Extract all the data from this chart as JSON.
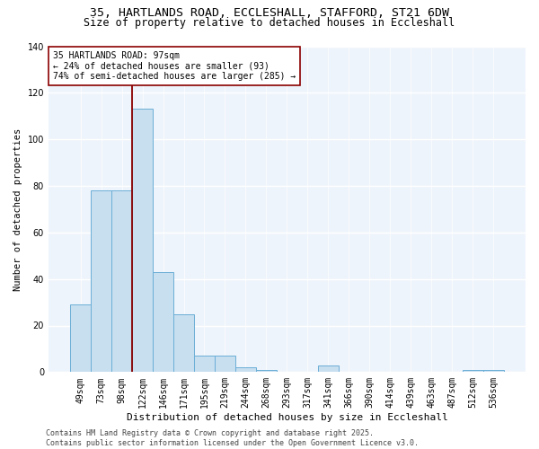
{
  "title_line1": "35, HARTLANDS ROAD, ECCLESHALL, STAFFORD, ST21 6DW",
  "title_line2": "Size of property relative to detached houses in Eccleshall",
  "xlabel": "Distribution of detached houses by size in Eccleshall",
  "ylabel": "Number of detached properties",
  "categories": [
    "49sqm",
    "73sqm",
    "98sqm",
    "122sqm",
    "146sqm",
    "171sqm",
    "195sqm",
    "219sqm",
    "244sqm",
    "268sqm",
    "293sqm",
    "317sqm",
    "341sqm",
    "366sqm",
    "390sqm",
    "414sqm",
    "439sqm",
    "463sqm",
    "487sqm",
    "512sqm",
    "536sqm"
  ],
  "values": [
    29,
    78,
    78,
    113,
    43,
    25,
    7,
    7,
    2,
    1,
    0,
    0,
    3,
    0,
    0,
    0,
    0,
    0,
    0,
    1,
    1
  ],
  "bar_color": "#c8dff0",
  "bar_edge_color": "#6baed6",
  "red_line_index": 2.5,
  "annotation_text_line1": "35 HARTLANDS ROAD: 97sqm",
  "annotation_text_line2": "← 24% of detached houses are smaller (93)",
  "annotation_text_line3": "74% of semi-detached houses are larger (285) →",
  "footer_line1": "Contains HM Land Registry data © Crown copyright and database right 2025.",
  "footer_line2": "Contains public sector information licensed under the Open Government Licence v3.0.",
  "ylim": [
    0,
    140
  ],
  "yticks": [
    0,
    20,
    40,
    60,
    80,
    100,
    120,
    140
  ],
  "bg_color": "#eef4fb",
  "grid_color": "#ffffff",
  "title_fontsize": 9.5,
  "subtitle_fontsize": 8.5,
  "xlabel_fontsize": 8,
  "ylabel_fontsize": 7.5,
  "tick_fontsize": 7,
  "annotation_fontsize": 7,
  "footer_fontsize": 6
}
